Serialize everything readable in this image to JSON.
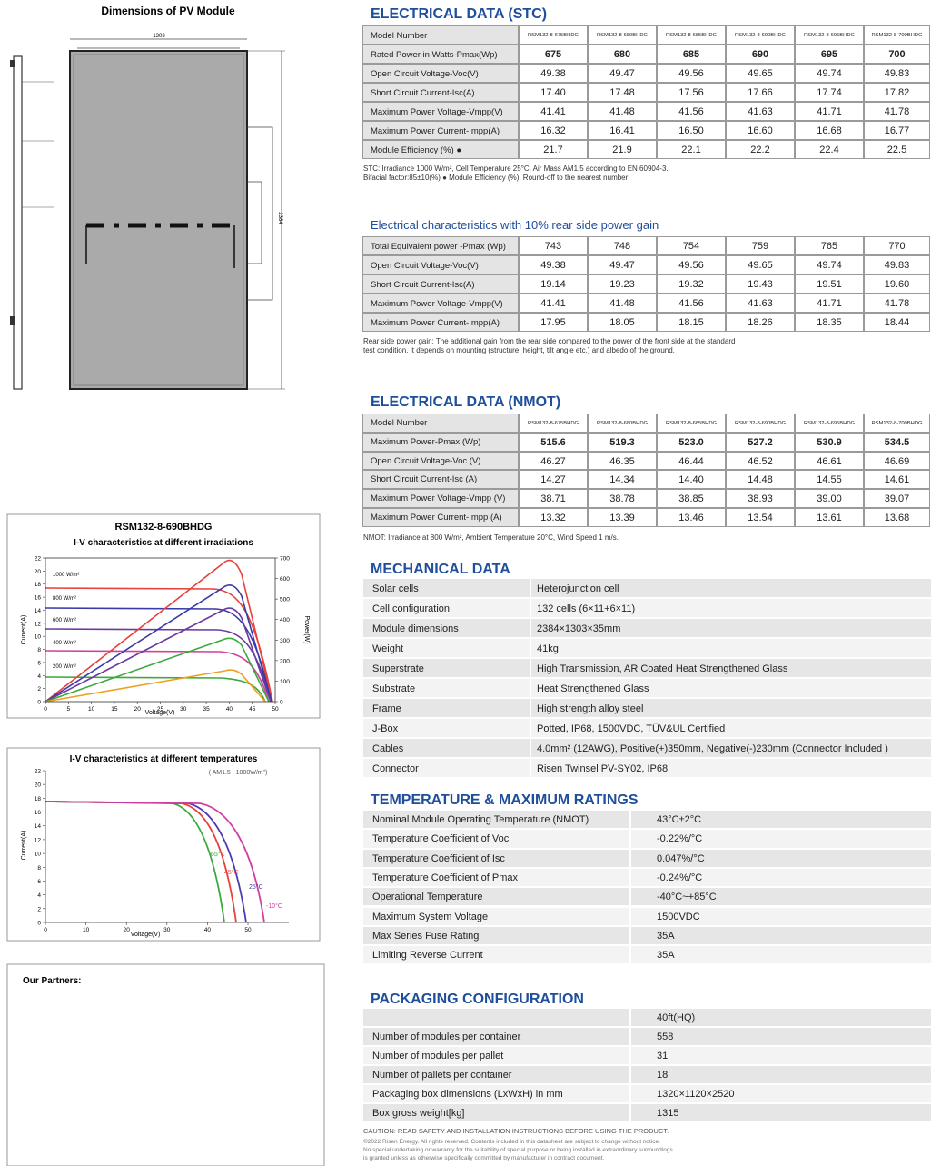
{
  "dimensions": {
    "title": "Dimensions of PV Module",
    "width": "1303",
    "length": "2384"
  },
  "iv_irradiance": {
    "model": "RSM132-8-690BHDG",
    "title": "I-V characteristics at different irradiations",
    "y_label": "Current(A)",
    "y2_label": "Power(W)",
    "x_label": "Voltage(V)",
    "yticks": [
      0,
      2,
      4,
      6,
      8,
      10,
      12,
      14,
      16,
      18,
      20,
      22
    ],
    "y2ticks": [
      0,
      100,
      200,
      300,
      400,
      500,
      600,
      700
    ],
    "xticks": [
      0,
      5,
      10,
      15,
      20,
      25,
      30,
      35,
      40,
      45,
      50
    ],
    "series_labels": [
      "1000 W/m²",
      "800 W/m²",
      "600 W/m²",
      "400 W/m²",
      "200 W/m²"
    ]
  },
  "iv_temperature": {
    "title": "I-V characteristics at different temperatures",
    "subtitle": "( AM1.5 , 1000W/m²)",
    "y_label": "Current(A)",
    "x_label": "Voltage(V)",
    "yticks": [
      0,
      2,
      4,
      6,
      8,
      10,
      12,
      14,
      16,
      18,
      20,
      22
    ],
    "xticks": [
      0,
      10,
      20,
      30,
      40,
      50
    ],
    "series_labels": [
      "65°C",
      "45°C",
      "25°C",
      "-10°C"
    ]
  },
  "partners": {
    "title": "Our Partners:"
  },
  "stc": {
    "title": "ELECTRICAL DATA (STC)",
    "rows": [
      [
        "Model Number",
        "RSM132-8-675BHDG",
        "RSM132-8-680BHDG",
        "RSM132-8-685BHDG",
        "RSM132-8-690BHDG",
        "RSM132-8-695BHDG",
        "RSM132-8-700BHDG"
      ],
      [
        "Rated Power in Watts-Pmax(Wp)",
        "675",
        "680",
        "685",
        "690",
        "695",
        "700"
      ],
      [
        "Open Circuit Voltage-Voc(V)",
        "49.38",
        "49.47",
        "49.56",
        "49.65",
        "49.74",
        "49.83"
      ],
      [
        "Short Circuit Current-Isc(A)",
        "17.40",
        "17.48",
        "17.56",
        "17.66",
        "17.74",
        "17.82"
      ],
      [
        "Maximum Power Voltage-Vmpp(V)",
        "41.41",
        "41.48",
        "41.56",
        "41.63",
        "41.71",
        "41.78"
      ],
      [
        "Maximum Power Current-Impp(A)",
        "16.32",
        "16.41",
        "16.50",
        "16.60",
        "16.68",
        "16.77"
      ],
      [
        "Module Efficiency (%) ●",
        "21.7",
        "21.9",
        "22.1",
        "22.2",
        "22.4",
        "22.5"
      ]
    ],
    "notes": [
      "STC: Irradiance 1000 W/m², Cell Temperature 25°C, Air Mass AM1.5 according to EN 60904-3.",
      "Bifacial factor:85±10(%)  ● Module Efficiency (%): Round-off to the nearest number"
    ]
  },
  "rear": {
    "title": "Electrical characteristics with 10% rear side power gain",
    "rows": [
      [
        "Total Equivalent power -Pmax (Wp)",
        "743",
        "748",
        "754",
        "759",
        "765",
        "770"
      ],
      [
        "Open Circuit Voltage-Voc(V)",
        "49.38",
        "49.47",
        "49.56",
        "49.65",
        "49.74",
        "49.83"
      ],
      [
        "Short Circuit Current-Isc(A)",
        "19.14",
        "19.23",
        "19.32",
        "19.43",
        "19.51",
        "19.60"
      ],
      [
        "Maximum Power Voltage-Vmpp(V)",
        "41.41",
        "41.48",
        "41.56",
        "41.63",
        "41.71",
        "41.78"
      ],
      [
        "Maximum Power Current-Impp(A)",
        "17.95",
        "18.05",
        "18.15",
        "18.26",
        "18.35",
        "18.44"
      ]
    ],
    "notes": [
      "Rear side power gain: The additional gain from the rear side compared to the power of the front side at the standard",
      "test condition. It depends on mounting (structure, height, tilt angle etc.) and albedo of the ground."
    ]
  },
  "nmot": {
    "title": "ELECTRICAL DATA (NMOT)",
    "rows": [
      [
        "Model Number",
        "RSM132-8-675BHDG",
        "RSM132-8-680BHDG",
        "RSM132-8-685BHDG",
        "RSM132-8-690BHDG",
        "RSM132-8-695BHDG",
        "RSM132-8-700BHDG"
      ],
      [
        "Maximum Power-Pmax (Wp)",
        "515.6",
        "519.3",
        "523.0",
        "527.2",
        "530.9",
        "534.5"
      ],
      [
        "Open Circuit Voltage-Voc (V)",
        "46.27",
        "46.35",
        "46.44",
        "46.52",
        "46.61",
        "46.69"
      ],
      [
        "Short Circuit Current-Isc (A)",
        "14.27",
        "14.34",
        "14.40",
        "14.48",
        "14.55",
        "14.61"
      ],
      [
        "Maximum Power Voltage-Vmpp (V)",
        "38.71",
        "38.78",
        "38.85",
        "38.93",
        "39.00",
        "39.07"
      ],
      [
        "Maximum Power Current-Impp (A)",
        "13.32",
        "13.39",
        "13.46",
        "13.54",
        "13.61",
        "13.68"
      ]
    ],
    "notes": [
      "NMOT: Irradiance at 800 W/m², Ambient Temperature 20°C, Wind Speed 1 m/s."
    ]
  },
  "mechanical": {
    "title": "MECHANICAL DATA",
    "rows": [
      [
        "Solar cells",
        "Heterojunction cell"
      ],
      [
        "Cell configuration",
        "132 cells (6×11+6×11)"
      ],
      [
        "Module dimensions",
        "2384×1303×35mm"
      ],
      [
        "Weight",
        "41kg"
      ],
      [
        "Superstrate",
        "High Transmission, AR Coated Heat Strengthened Glass"
      ],
      [
        "Substrate",
        "Heat Strengthened Glass"
      ],
      [
        "Frame",
        "High strength alloy steel"
      ],
      [
        "J-Box",
        "Potted, IP68, 1500VDC, TÜV&UL Certified"
      ],
      [
        "Cables",
        "4.0mm² (12AWG), Positive(+)350mm, Negative(-)230mm (Connector Included )"
      ],
      [
        "Connector",
        "Risen Twinsel PV-SY02, IP68"
      ]
    ]
  },
  "temperature": {
    "title": "TEMPERATURE & MAXIMUM RATINGS",
    "rows": [
      [
        "Nominal Module Operating Temperature (NMOT)",
        "43°C±2°C"
      ],
      [
        "Temperature Coefficient of Voc",
        "-0.22%/°C"
      ],
      [
        "Temperature Coefficient of Isc",
        "0.047%/°C"
      ],
      [
        "Temperature Coefficient of Pmax",
        "-0.24%/°C"
      ],
      [
        "Operational Temperature",
        "-40°C~+85°C"
      ],
      [
        "Maximum System Voltage",
        "1500VDC"
      ],
      [
        "Max Series Fuse Rating",
        "35A"
      ],
      [
        "Limiting Reverse Current",
        "35A"
      ]
    ]
  },
  "packaging": {
    "title": "PACKAGING CONFIGURATION",
    "header": "40ft(HQ)",
    "rows": [
      [
        "Number of modules per container",
        "558"
      ],
      [
        "Number of modules per pallet",
        "31"
      ],
      [
        "Number of pallets per container",
        "18"
      ],
      [
        "Packaging box dimensions (LxWxH) in mm",
        "1320×1120×2520"
      ],
      [
        "Box gross weight[kg]",
        "1315"
      ]
    ]
  },
  "footer": {
    "caution": "CAUTION: READ SAFETY AND INSTALLATION INSTRUCTIONS BEFORE USING THE PRODUCT.",
    "legal": [
      "©2022 Risen Energy. All rights reserved. Contents included in this datasheet are subject to change without notice.",
      "No special undertaking or warranty for the suitability of special purpose or being installed in extraordinary surroundings",
      "is granted unless as otherwise specifically committed by manufacturer in contract document."
    ]
  }
}
